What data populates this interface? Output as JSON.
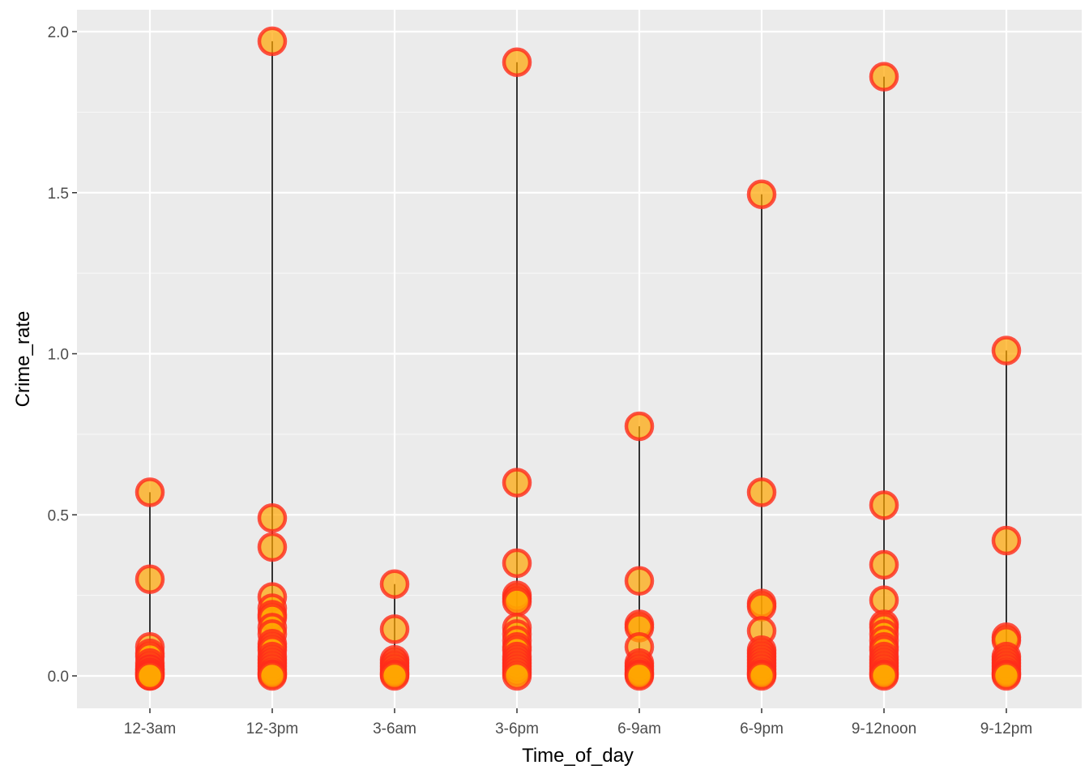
{
  "chart_data": {
    "type": "scatter",
    "title": "",
    "xlabel": "Time_of_day",
    "ylabel": "Crime_rate",
    "categories": [
      "12-3am",
      "12-3pm",
      "3-6am",
      "3-6pm",
      "6-9am",
      "6-9pm",
      "9-12noon",
      "9-12pm"
    ],
    "ylim": [
      -0.1,
      2.0
    ],
    "yticks": [
      0.0,
      0.5,
      1.0,
      1.5,
      2.0
    ],
    "ytick_labels": [
      "0.0",
      "0.5",
      "1.0",
      "1.5",
      "2.0"
    ],
    "grid": true,
    "legend": "none",
    "colors": {
      "panel": "#ebebeb",
      "grid": "#ffffff",
      "point_fill": "#ffa500",
      "point_stroke": "#ff2a1a",
      "segment": "#000000"
    },
    "segments": [
      {
        "category": "12-3am",
        "from": 0.0,
        "to": 0.57
      },
      {
        "category": "12-3pm",
        "from": 0.0,
        "to": 1.97
      },
      {
        "category": "3-6am",
        "from": 0.0,
        "to": 0.285
      },
      {
        "category": "3-6pm",
        "from": 0.0,
        "to": 1.905
      },
      {
        "category": "6-9am",
        "from": 0.0,
        "to": 0.775
      },
      {
        "category": "6-9pm",
        "from": 0.0,
        "to": 1.495
      },
      {
        "category": "9-12noon",
        "from": 0.0,
        "to": 1.86
      },
      {
        "category": "9-12pm",
        "from": 0.0,
        "to": 1.01
      }
    ],
    "points": {
      "12-3am": [
        0.57,
        0.3,
        0.09,
        0.07,
        0.06,
        0.04,
        0.03,
        0.02,
        0.02,
        0.01,
        0.01,
        0.005,
        0.0,
        0.0
      ],
      "12-3pm": [
        1.97,
        0.49,
        0.4,
        0.245,
        0.21,
        0.19,
        0.18,
        0.15,
        0.13,
        0.1,
        0.09,
        0.08,
        0.06,
        0.05,
        0.04,
        0.03,
        0.02,
        0.01,
        0.005,
        0.0
      ],
      "3-6am": [
        0.285,
        0.145,
        0.05,
        0.04,
        0.03,
        0.02,
        0.01,
        0.005,
        0.0
      ],
      "3-6pm": [
        1.905,
        0.6,
        0.35,
        0.25,
        0.24,
        0.23,
        0.15,
        0.13,
        0.11,
        0.09,
        0.08,
        0.06,
        0.05,
        0.04,
        0.03,
        0.02,
        0.01,
        0.0
      ],
      "6-9am": [
        0.775,
        0.295,
        0.16,
        0.15,
        0.09,
        0.04,
        0.03,
        0.02,
        0.01,
        0.005,
        0.0
      ],
      "6-9pm": [
        1.495,
        0.57,
        0.225,
        0.215,
        0.14,
        0.08,
        0.07,
        0.06,
        0.05,
        0.04,
        0.03,
        0.02,
        0.01,
        0.005,
        0.0
      ],
      "9-12noon": [
        1.86,
        0.53,
        0.345,
        0.235,
        0.16,
        0.15,
        0.13,
        0.11,
        0.09,
        0.08,
        0.06,
        0.05,
        0.04,
        0.03,
        0.02,
        0.01,
        0.005,
        0.0
      ],
      "9-12pm": [
        1.01,
        0.42,
        0.12,
        0.11,
        0.06,
        0.05,
        0.04,
        0.03,
        0.02,
        0.01,
        0.005,
        0.0
      ]
    }
  }
}
